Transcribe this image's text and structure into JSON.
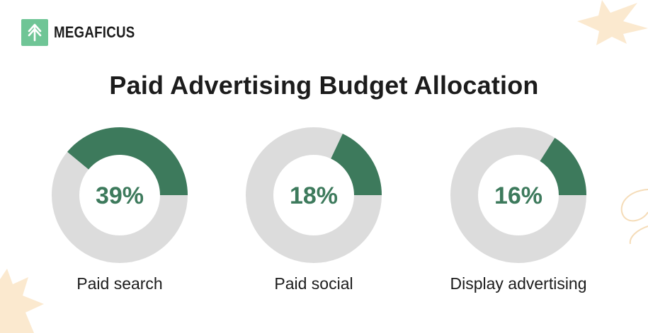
{
  "brand": {
    "name": "MEGAFICUS",
    "logo_icon": "tree-icon",
    "logo_color": "#6fc596"
  },
  "chart_data": {
    "type": "pie",
    "variant": "donut",
    "title": "Paid Advertising Budget Allocation",
    "series": [
      {
        "name": "Paid search",
        "value": 39,
        "label": "39%"
      },
      {
        "name": "Paid social",
        "value": 18,
        "label": "18%"
      },
      {
        "name": "Display advertising",
        "value": 16,
        "label": "16%"
      }
    ],
    "unit": "%",
    "colors": {
      "filled": "#3d7a5c",
      "track": "#dcdcdc",
      "value_text": "#3d7a5c"
    }
  }
}
